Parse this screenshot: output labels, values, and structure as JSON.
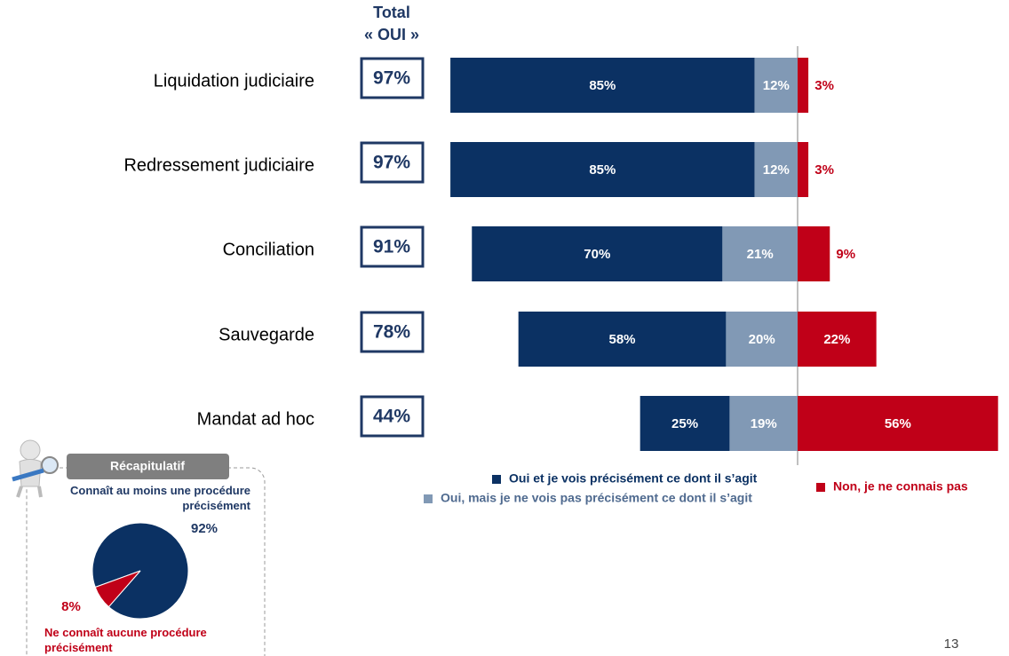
{
  "chart_data": [
    {
      "type": "bar",
      "totals_header": [
        "Total",
        "« OUI »"
      ],
      "categories": [
        "Liquidation judiciaire",
        "Redressement judiciaire",
        "Conciliation",
        "Sauvegarde",
        "Mandat ad hoc"
      ],
      "totals": [
        97,
        97,
        91,
        78,
        44
      ],
      "totals_labels": [
        "97%",
        "97%",
        "91%",
        "78%",
        "44%"
      ],
      "series": [
        {
          "name": "Oui et je vois précisément ce dont il s’agit",
          "color": "#0b3163",
          "values": [
            85,
            85,
            70,
            58,
            25
          ],
          "value_labels": [
            "85%",
            "85%",
            "70%",
            "58%",
            "25%"
          ]
        },
        {
          "name": "Oui, mais je ne vois pas précisément ce dont il s’agit",
          "color": "#8199b5",
          "values": [
            12,
            12,
            21,
            20,
            19
          ],
          "value_labels": [
            "12%",
            "12%",
            "21%",
            "20%",
            "19%"
          ]
        },
        {
          "name": "Non, je ne connais pas",
          "color": "#c00018",
          "values": [
            3,
            3,
            9,
            22,
            56
          ],
          "value_labels": [
            "3%",
            "3%",
            "9%",
            "22%",
            "56%"
          ]
        }
      ]
    },
    {
      "type": "pie",
      "title": "Récapitulatif",
      "categories": [
        "Connaît au moins une procédure précisément",
        "Ne connaît aucune procédure précisément"
      ],
      "values": [
        92,
        8
      ],
      "value_labels": [
        "92%",
        "8%"
      ],
      "colors": [
        "#0b3163",
        "#c00018"
      ]
    }
  ],
  "page_number": 13
}
